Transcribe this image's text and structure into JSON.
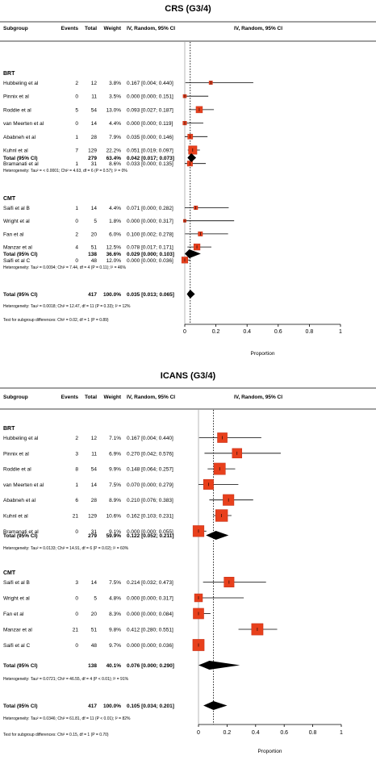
{
  "columns": {
    "subgroup": "Subgroup",
    "events": "Events",
    "total": "Total",
    "weight": "Weight",
    "ci": "IV, Random, 95% CI",
    "plot": "IV, Random, 95% CI"
  },
  "colors": {
    "square": "#e8401c",
    "square_edge": "#c0301a",
    "diamond": "#000000"
  },
  "chart_data": [
    {
      "type": "forest",
      "title": "CRS (G3/4)",
      "xlabel": "Proportion",
      "xlim": [
        0,
        1
      ],
      "xticks": [
        0,
        0.2,
        0.4,
        0.6,
        0.8,
        1
      ],
      "xtick_labels": [
        "0",
        "0.2",
        "0.4",
        "0.6",
        "0.8",
        "1"
      ],
      "reference_line": 0.035,
      "groups": [
        {
          "name": "BRT",
          "studies": [
            {
              "study": "Hubbeling et al",
              "events": "2",
              "total": "12",
              "weight": "3.8%",
              "ci_text": "0.167 [0.004; 0.440]",
              "est": 0.167,
              "lo": 0.004,
              "hi": 0.44
            },
            {
              "study": "Pinnix et al",
              "events": "0",
              "total": "11",
              "weight": "3.5%",
              "ci_text": "0.000 [0.000; 0.151]",
              "est": 0.0,
              "lo": 0.0,
              "hi": 0.151
            },
            {
              "study": "Roddie et al",
              "events": "5",
              "total": "54",
              "weight": "13.0%",
              "ci_text": "0.093 [0.027; 0.187]",
              "est": 0.093,
              "lo": 0.027,
              "hi": 0.187
            },
            {
              "study": "van Meerten et al",
              "events": "0",
              "total": "14",
              "weight": "4.4%",
              "ci_text": "0.000 [0.000; 0.119]",
              "est": 0.0,
              "lo": 0.0,
              "hi": 0.119
            },
            {
              "study": "Ababneh et al",
              "events": "1",
              "total": "28",
              "weight": "7.9%",
              "ci_text": "0.035 [0.000; 0.146]",
              "est": 0.035,
              "lo": 0.0,
              "hi": 0.146
            },
            {
              "study": "Kuhnl et al",
              "events": "7",
              "total": "129",
              "weight": "22.2%",
              "ci_text": "0.051 [0.019; 0.097]",
              "est": 0.051,
              "lo": 0.019,
              "hi": 0.097
            },
            {
              "study": "Bramanati et al",
              "events": "1",
              "total": "31",
              "weight": "8.6%",
              "ci_text": "0.033 [0.000; 0.135]",
              "est": 0.033,
              "lo": 0.0,
              "hi": 0.135
            }
          ],
          "total": {
            "label": "Total (95% CI)",
            "total": "279",
            "weight": "63.4%",
            "ci_text": "0.042 [0.017; 0.073]",
            "est": 0.042,
            "lo": 0.017,
            "hi": 0.073
          },
          "heterogeneity": "Heterogeneity: Tau² = < 0.0001; Chi² = 4.63, df = 6 (P = 0.57); I² = 0%"
        },
        {
          "name": "CMT",
          "studies": [
            {
              "study": "Saifi et al B",
              "events": "1",
              "total": "14",
              "weight": "4.4%",
              "ci_text": "0.071 [0.000; 0.282]",
              "est": 0.071,
              "lo": 0.0,
              "hi": 0.282
            },
            {
              "study": "Wright et al",
              "events": "0",
              "total": "5",
              "weight": "1.8%",
              "ci_text": "0.000 [0.000; 0.317]",
              "est": 0.0,
              "lo": 0.0,
              "hi": 0.317
            },
            {
              "study": "Fan et al",
              "events": "2",
              "total": "20",
              "weight": "6.0%",
              "ci_text": "0.100 [0.002; 0.278]",
              "est": 0.1,
              "lo": 0.002,
              "hi": 0.278
            },
            {
              "study": "Manzar et al",
              "events": "4",
              "total": "51",
              "weight": "12.5%",
              "ci_text": "0.078 [0.017; 0.171]",
              "est": 0.078,
              "lo": 0.017,
              "hi": 0.171
            },
            {
              "study": "Saifi et al C",
              "events": "0",
              "total": "48",
              "weight": "12.0%",
              "ci_text": "0.000 [0.000; 0.036]",
              "est": 0.0,
              "lo": 0.0,
              "hi": 0.036
            }
          ],
          "total": {
            "label": "Total (95% CI)",
            "total": "138",
            "weight": "36.6%",
            "ci_text": "0.029 [0.000; 0.103]",
            "est": 0.029,
            "lo": 0.0,
            "hi": 0.103
          },
          "heterogeneity": "Heterogeneity: Tau² = 0.0094; Chi² = 7.44, df = 4 (P = 0.11); I² = 46%"
        }
      ],
      "overall": {
        "label": "Total (95% CI)",
        "total": "417",
        "weight": "100.0%",
        "ci_text": "0.035 [0.013; 0.065]",
        "est": 0.035,
        "lo": 0.013,
        "hi": 0.065
      },
      "overall_heterogeneity": "Heterogeneity: Tau² = 0.0018; Chi² = 12.47, df = 11 (P = 0.33); I² = 12%",
      "subgroup_test": "Test for subgroup differences: Chi² = 0.02, df = 1 (P = 0.89)"
    },
    {
      "type": "forest",
      "title": "ICANS (G3/4)",
      "xlabel": "Proportion",
      "xlim": [
        0,
        1
      ],
      "xticks": [
        0,
        0.2,
        0.4,
        0.6,
        0.8,
        1
      ],
      "xtick_labels": [
        "0",
        "0.2",
        "0.4",
        "0.6",
        "0.8",
        "1"
      ],
      "reference_line": 0.105,
      "groups": [
        {
          "name": "BRT",
          "studies": [
            {
              "study": "Hubbeling et al",
              "events": "2",
              "total": "12",
              "weight": "7.1%",
              "ci_text": "0.167 [0.004; 0.440]",
              "est": 0.167,
              "lo": 0.004,
              "hi": 0.44
            },
            {
              "study": "Pinnix et al",
              "events": "3",
              "total": "11",
              "weight": "6.9%",
              "ci_text": "0.270 [0.042; 0.576]",
              "est": 0.27,
              "lo": 0.042,
              "hi": 0.576
            },
            {
              "study": "Roddie et al",
              "events": "8",
              "total": "54",
              "weight": "9.9%",
              "ci_text": "0.148 [0.064; 0.257]",
              "est": 0.148,
              "lo": 0.064,
              "hi": 0.257
            },
            {
              "study": "van Meerten et al",
              "events": "1",
              "total": "14",
              "weight": "7.5%",
              "ci_text": "0.070 [0.000; 0.279]",
              "est": 0.07,
              "lo": 0.0,
              "hi": 0.279
            },
            {
              "study": "Ababneh et al",
              "events": "6",
              "total": "28",
              "weight": "8.9%",
              "ci_text": "0.210 [0.076; 0.383]",
              "est": 0.21,
              "lo": 0.076,
              "hi": 0.383
            },
            {
              "study": "Kuhnl et al",
              "events": "21",
              "total": "129",
              "weight": "10.6%",
              "ci_text": "0.162 [0.103; 0.231]",
              "est": 0.162,
              "lo": 0.103,
              "hi": 0.231
            },
            {
              "study": "Bramanati et al",
              "events": "0",
              "total": "31",
              "weight": "9.1%",
              "ci_text": "0.000 [0.000; 0.055]",
              "est": 0.0,
              "lo": 0.0,
              "hi": 0.055
            }
          ],
          "total": {
            "label": "Total (95% CI)",
            "total": "279",
            "weight": "59.9%",
            "ci_text": "0.122 [0.052; 0.211]",
            "est": 0.122,
            "lo": 0.052,
            "hi": 0.211
          },
          "heterogeneity": "Heterogeneity: Tau² = 0.0133; Chi² = 14.91, df = 6 (P = 0.02); I² = 60%"
        },
        {
          "name": "CMT",
          "studies": [
            {
              "study": "Saifi et al B",
              "events": "3",
              "total": "14",
              "weight": "7.5%",
              "ci_text": "0.214 [0.032; 0.473]",
              "est": 0.214,
              "lo": 0.032,
              "hi": 0.473
            },
            {
              "study": "Wright et al",
              "events": "0",
              "total": "5",
              "weight": "4.8%",
              "ci_text": "0.000 [0.000; 0.317]",
              "est": 0.0,
              "lo": 0.0,
              "hi": 0.317
            },
            {
              "study": "Fan et al",
              "events": "0",
              "total": "20",
              "weight": "8.3%",
              "ci_text": "0.000 [0.000; 0.084]",
              "est": 0.0,
              "lo": 0.0,
              "hi": 0.084
            },
            {
              "study": "Manzar et al",
              "events": "21",
              "total": "51",
              "weight": "9.8%",
              "ci_text": "0.412 [0.280; 0.551]",
              "est": 0.412,
              "lo": 0.28,
              "hi": 0.551
            },
            {
              "study": "Saifi et al C",
              "events": "0",
              "total": "48",
              "weight": "9.7%",
              "ci_text": "0.000 [0.000; 0.036]",
              "est": 0.0,
              "lo": 0.0,
              "hi": 0.036
            }
          ],
          "total": {
            "label": "Total (95% CI)",
            "total": "138",
            "weight": "40.1%",
            "ci_text": "0.076 [0.000; 0.290]",
            "est": 0.076,
            "lo": 0.0,
            "hi": 0.29
          },
          "heterogeneity": "Heterogeneity: Tau² = 0.0721; Chi² = 46.55, df = 4 (P < 0.01); I² = 91%"
        }
      ],
      "overall": {
        "label": "Total (95% CI)",
        "total": "417",
        "weight": "100.0%",
        "ci_text": "0.105 [0.034; 0.201]",
        "est": 0.105,
        "lo": 0.034,
        "hi": 0.201
      },
      "overall_heterogeneity": "Heterogeneity: Tau² = 0.0346; Chi² = 61.81, df = 11 (P < 0.01); I² = 82%",
      "subgroup_test": "Test for subgroup differences: Chi² = 0.15, df = 1 (P = 0.70)"
    }
  ]
}
